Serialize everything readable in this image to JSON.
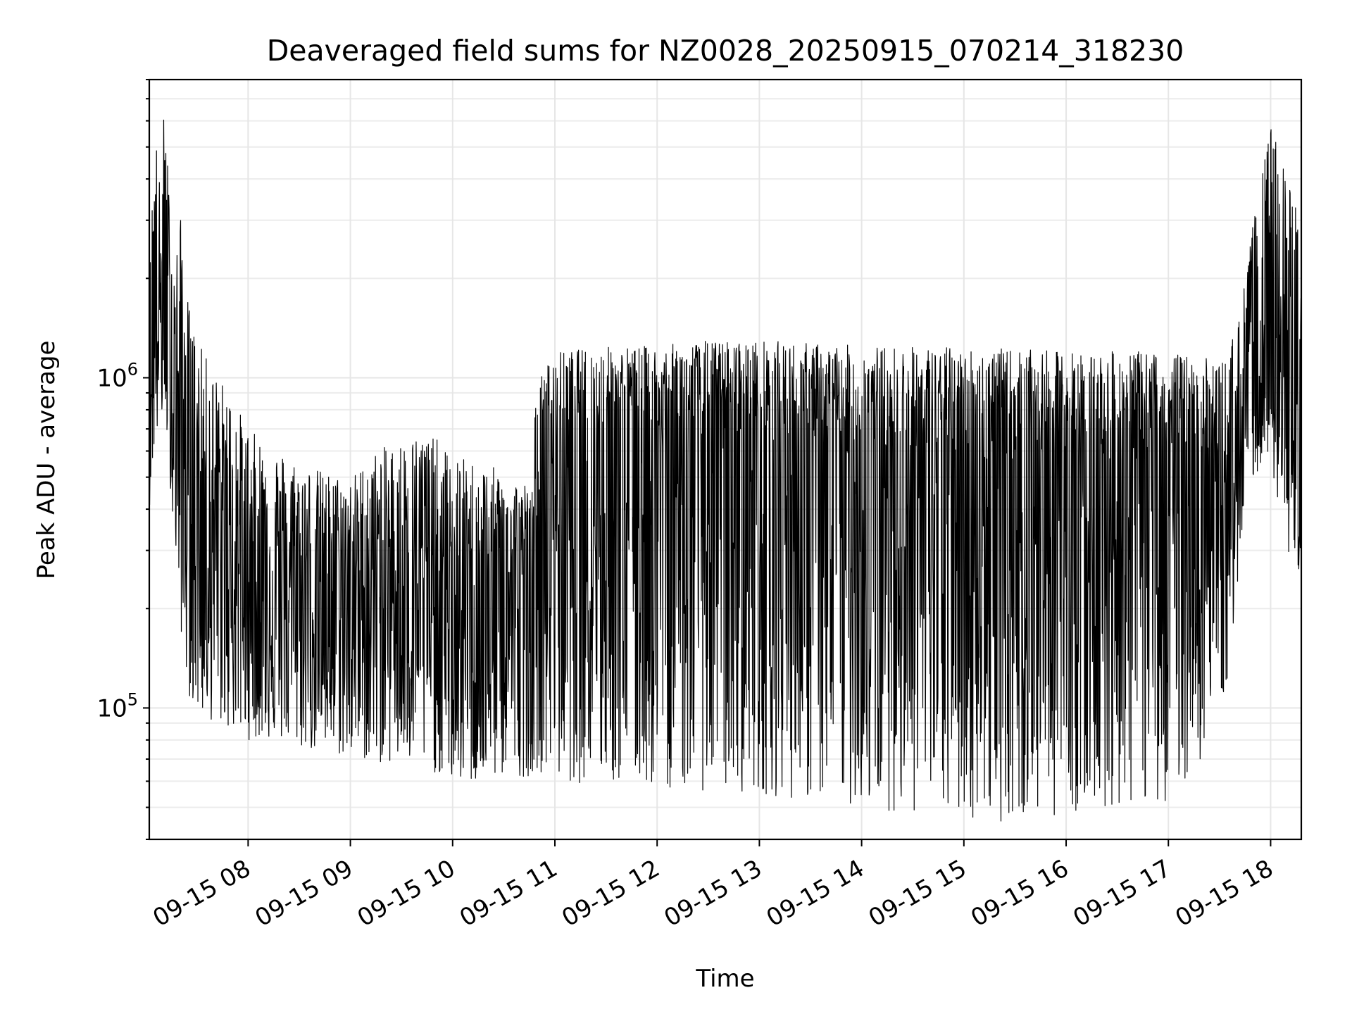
{
  "chart_data": {
    "type": "line",
    "title": "Deaveraged field sums for NZ0028_20250915_070214_318230",
    "xlabel": "Time",
    "ylabel": "Peak ADU - average",
    "x_scale": "time",
    "y_scale": "log",
    "xlim": [
      "2025-09-15 07:02",
      "2025-09-15 18:18"
    ],
    "ylim": [
      40000,
      8000000
    ],
    "x_ticks": [
      {
        "t": "2025-09-15 08:00",
        "label": "09-15 08"
      },
      {
        "t": "2025-09-15 09:00",
        "label": "09-15 09"
      },
      {
        "t": "2025-09-15 10:00",
        "label": "09-15 10"
      },
      {
        "t": "2025-09-15 11:00",
        "label": "09-15 11"
      },
      {
        "t": "2025-09-15 12:00",
        "label": "09-15 12"
      },
      {
        "t": "2025-09-15 13:00",
        "label": "09-15 13"
      },
      {
        "t": "2025-09-15 14:00",
        "label": "09-15 14"
      },
      {
        "t": "2025-09-15 15:00",
        "label": "09-15 15"
      },
      {
        "t": "2025-09-15 16:00",
        "label": "09-15 16"
      },
      {
        "t": "2025-09-15 17:00",
        "label": "09-15 17"
      },
      {
        "t": "2025-09-15 18:00",
        "label": "09-15 18"
      }
    ],
    "y_ticks": [
      {
        "value": 100000,
        "base": "10",
        "exp": "5"
      },
      {
        "value": 1000000,
        "base": "10",
        "exp": "6"
      }
    ],
    "grid": true,
    "series": [
      {
        "x": [
          "2025-09-15 07:02",
          "2025-09-15 07:05",
          "2025-09-15 07:08",
          "2025-09-15 07:11",
          "2025-09-15 07:14",
          "2025-09-15 07:17",
          "2025-09-15 07:20",
          "2025-09-15 07:25",
          "2025-09-15 07:30",
          "2025-09-15 07:40",
          "2025-09-15 07:50",
          "2025-09-15 08:00",
          "2025-09-15 08:15",
          "2025-09-15 08:30",
          "2025-09-15 08:45",
          "2025-09-15 09:00",
          "2025-09-15 09:15",
          "2025-09-15 09:30",
          "2025-09-15 09:45",
          "2025-09-15 10:00",
          "2025-09-15 10:15",
          "2025-09-15 10:30",
          "2025-09-15 10:45",
          "2025-09-15 10:50",
          "2025-09-15 11:00",
          "2025-09-15 11:30",
          "2025-09-15 12:00",
          "2025-09-15 12:30",
          "2025-09-15 13:00",
          "2025-09-15 13:30",
          "2025-09-15 14:00",
          "2025-09-15 14:30",
          "2025-09-15 15:00",
          "2025-09-15 15:30",
          "2025-09-15 16:00",
          "2025-09-15 16:30",
          "2025-09-15 17:00",
          "2025-09-15 17:20",
          "2025-09-15 17:35",
          "2025-09-15 17:45",
          "2025-09-15 17:50",
          "2025-09-15 18:00",
          "2025-09-15 18:05",
          "2025-09-15 18:10",
          "2025-09-15 18:18"
        ],
        "envelope_high": [
          1800000,
          6800000,
          4000000,
          7000000,
          3500000,
          2200000,
          3200000,
          1700000,
          1300000,
          1050000,
          900000,
          700000,
          620000,
          560000,
          520000,
          500000,
          600000,
          650000,
          700000,
          580000,
          560000,
          520000,
          480000,
          1000000,
          1200000,
          1250000,
          1250000,
          1300000,
          1300000,
          1280000,
          1250000,
          1250000,
          1240000,
          1220000,
          1200000,
          1200000,
          1200000,
          1150000,
          1150000,
          2000000,
          3000000,
          5800000,
          5000000,
          4200000,
          3000000
        ],
        "envelope_mid": [
          1000000,
          1500000,
          1500000,
          1500000,
          1200000,
          900000,
          700000,
          500000,
          420000,
          350000,
          300000,
          260000,
          240000,
          230000,
          220000,
          230000,
          250000,
          260000,
          240000,
          160000,
          200000,
          220000,
          220000,
          350000,
          550000,
          600000,
          650000,
          650000,
          650000,
          600000,
          580000,
          570000,
          560000,
          560000,
          560000,
          560000,
          560000,
          540000,
          400000,
          900000,
          1100000,
          1000000,
          750000,
          700000,
          650000
        ],
        "envelope_low": [
          400000,
          600000,
          700000,
          800000,
          500000,
          300000,
          180000,
          110000,
          95000,
          90000,
          85000,
          80000,
          80000,
          75000,
          72000,
          70000,
          68000,
          66000,
          65000,
          60000,
          58000,
          62000,
          62000,
          65000,
          60000,
          58000,
          57000,
          56000,
          55000,
          52000,
          50000,
          48000,
          46000,
          45000,
          48000,
          50000,
          52000,
          70000,
          120000,
          400000,
          500000,
          600000,
          350000,
          300000,
          250000
        ]
      }
    ]
  }
}
